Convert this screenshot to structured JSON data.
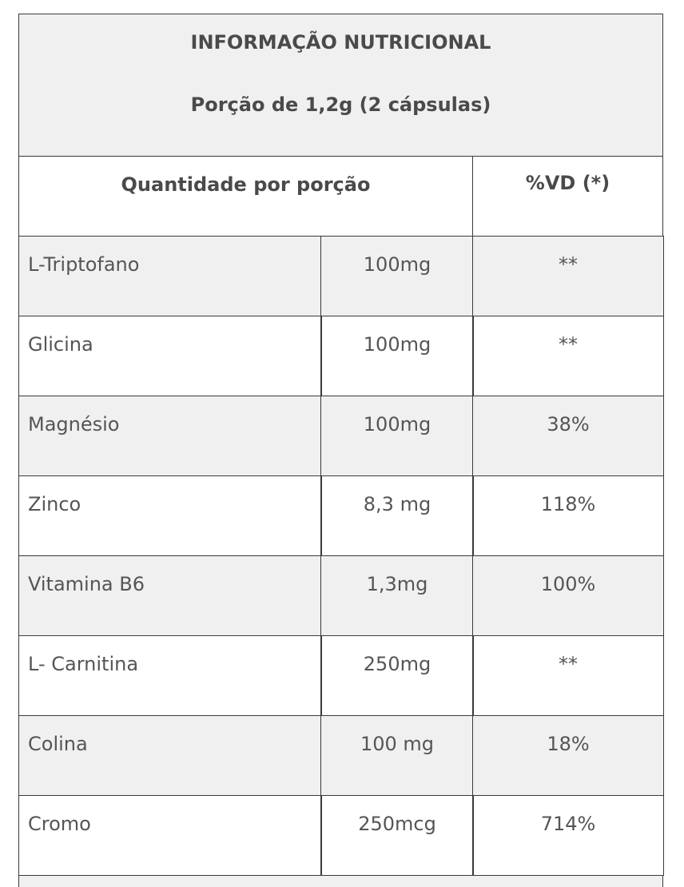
{
  "header": {
    "title": "INFORMAÇÃO NUTRICIONAL",
    "serving": "Porção de 1,2g (2 cápsulas)"
  },
  "table": {
    "columns": [
      "Quantidade por porção",
      "%VD (*)"
    ],
    "rows": [
      [
        "L-Triptofano",
        "100mg",
        "**"
      ],
      [
        "Glicina",
        "100mg",
        "**"
      ],
      [
        "Magnésio",
        "100mg",
        "38%"
      ],
      [
        "Zinco",
        "8,3 mg",
        "118%"
      ],
      [
        "Vitamina B6",
        "1,3mg",
        "100%"
      ],
      [
        "L- Carnitina",
        "250mg",
        "**"
      ],
      [
        "Colina",
        "100 mg",
        "18%"
      ],
      [
        "Cromo",
        "250mcg",
        "714%"
      ]
    ]
  }
}
